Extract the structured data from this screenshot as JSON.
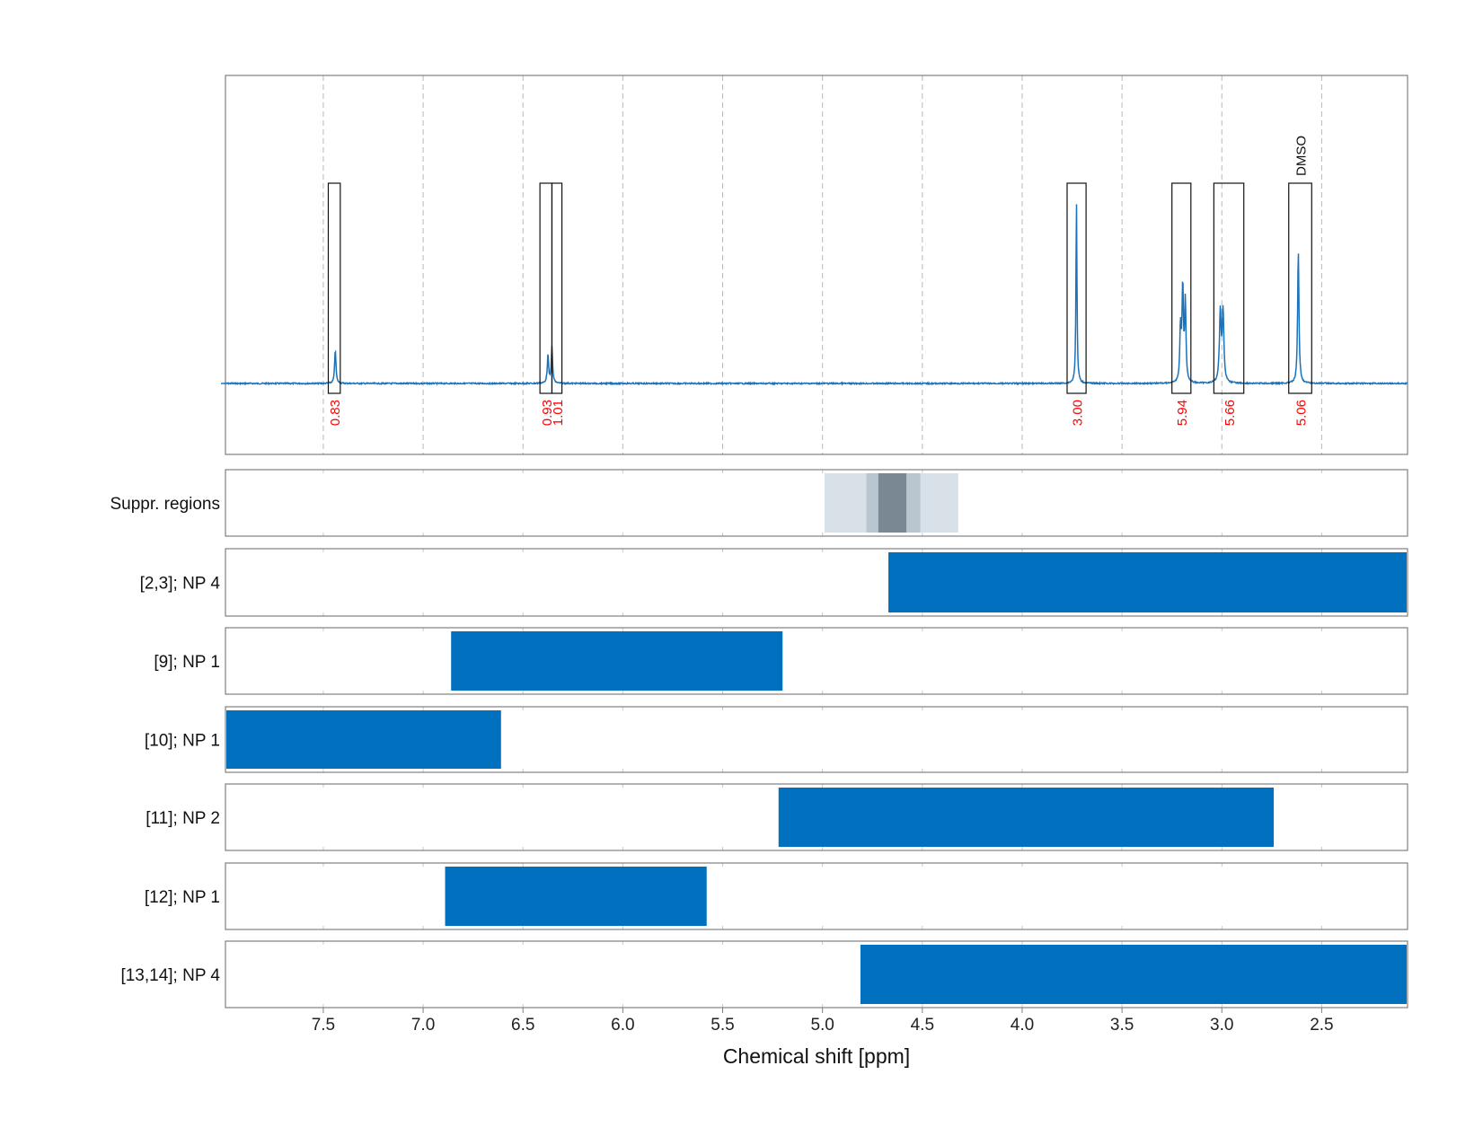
{
  "chart_data": {
    "type": "line",
    "xlabel": "Chemical shift [ppm]",
    "xlim": [
      7.99,
      2.07
    ],
    "x_axis_reversed": true,
    "x_ticks": [
      "7.5",
      "7.0",
      "6.5",
      "6.0",
      "5.5",
      "5.0",
      "4.5",
      "4.0",
      "3.5",
      "3.0",
      "2.5"
    ],
    "grid": true,
    "spectrum": {
      "baseline": 0,
      "peaks": [
        {
          "ppm": 7.44,
          "height": 0.17,
          "width": 0.004
        },
        {
          "ppm": 6.375,
          "height": 0.14,
          "width": 0.004
        },
        {
          "ppm": 6.355,
          "height": 0.18,
          "width": 0.004
        },
        {
          "ppm": 3.728,
          "height": 0.91,
          "width": 0.003
        },
        {
          "ppm": 3.196,
          "height": 0.47,
          "width": 0.004
        },
        {
          "ppm": 3.183,
          "height": 0.4,
          "width": 0.004
        },
        {
          "ppm": 3.207,
          "height": 0.27,
          "width": 0.004
        },
        {
          "ppm": 3.008,
          "height": 0.35,
          "width": 0.005
        },
        {
          "ppm": 2.994,
          "height": 0.35,
          "width": 0.005
        },
        {
          "ppm": 2.617,
          "height": 0.66,
          "width": 0.004
        }
      ]
    },
    "integration_regions": [
      {
        "from": 7.475,
        "to": 7.415,
        "value": "0.83"
      },
      {
        "from": 6.415,
        "to": 6.355,
        "value": "0.93"
      },
      {
        "from": 6.355,
        "to": 6.305,
        "value": "1.01"
      },
      {
        "from": 3.775,
        "to": 3.68,
        "value": "3.00"
      },
      {
        "from": 3.25,
        "to": 3.155,
        "value": "5.94"
      },
      {
        "from": 3.04,
        "to": 2.89,
        "value": "5.66"
      },
      {
        "from": 2.665,
        "to": 2.55,
        "value": "5.06",
        "annotation": "DMSO"
      }
    ],
    "suppression_regions": {
      "label": "Suppr. regions",
      "bands": [
        {
          "from": 4.99,
          "to": 4.32,
          "shade": "#d9e1e8"
        },
        {
          "from": 4.78,
          "to": 4.51,
          "shade": "#b9c6cf"
        },
        {
          "from": 4.72,
          "to": 4.58,
          "shade": "#7a8893"
        }
      ]
    },
    "ranges": [
      {
        "label": "[2,3]; NP 4",
        "from": 4.67,
        "to": 2.07
      },
      {
        "label": "[9]; NP 1",
        "from": 6.86,
        "to": 5.2
      },
      {
        "label": "[10]; NP 1",
        "from": 7.99,
        "to": 6.61
      },
      {
        "label": "[11]; NP 2",
        "from": 5.22,
        "to": 2.74
      },
      {
        "label": "[12]; NP 1",
        "from": 6.89,
        "to": 5.58
      },
      {
        "label": "[13,14]; NP 4",
        "from": 4.81,
        "to": 2.07
      }
    ],
    "colors": {
      "spectrum": "#1a72bb",
      "range_bar": "#0070bf",
      "integral_text": "#ff0000"
    }
  }
}
